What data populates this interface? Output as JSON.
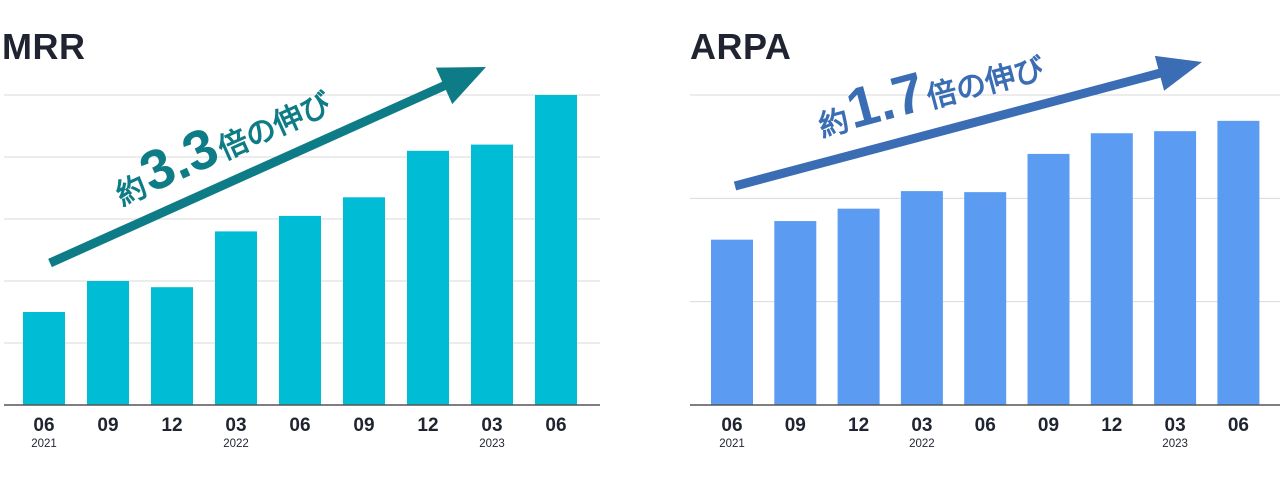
{
  "chart_data": [
    {
      "type": "bar",
      "title": "MRR",
      "categories": [
        "06",
        "09",
        "12",
        "03",
        "06",
        "09",
        "12",
        "03",
        "06"
      ],
      "year_labels": [
        "2021",
        "",
        "",
        "2022",
        "",
        "",
        "",
        "2023",
        ""
      ],
      "values": [
        1.5,
        2.0,
        1.9,
        2.8,
        3.05,
        3.35,
        4.1,
        4.2,
        5.0
      ],
      "ylim": [
        0,
        5
      ],
      "grid": true,
      "color": "#00bcd4",
      "annotation": {
        "prefix": "約",
        "value": "3.3",
        "suffix": "倍の伸び",
        "color": "#0e7c86"
      }
    },
    {
      "type": "bar",
      "title": "ARPA",
      "categories": [
        "06",
        "09",
        "12",
        "03",
        "06",
        "09",
        "12",
        "03",
        "06"
      ],
      "year_labels": [
        "2021",
        "",
        "",
        "2022",
        "",
        "",
        "",
        "2023",
        ""
      ],
      "values": [
        1.6,
        1.78,
        1.9,
        2.07,
        2.06,
        2.43,
        2.63,
        2.65,
        2.75
      ],
      "ylim": [
        0,
        3
      ],
      "grid": true,
      "color": "#5b9cf2",
      "annotation": {
        "prefix": "約",
        "value": "1.7",
        "suffix": "倍の伸び",
        "color": "#3a6db4"
      }
    }
  ]
}
